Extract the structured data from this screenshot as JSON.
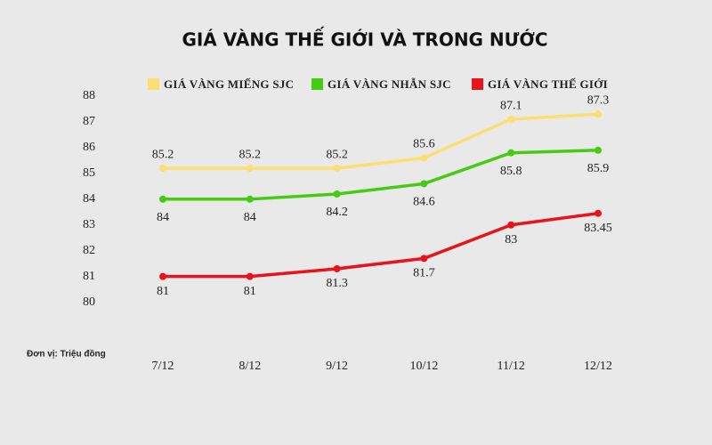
{
  "chart_data": {
    "type": "line",
    "title": "GIÁ VÀNG THẾ GIỚI VÀ TRONG NƯỚC",
    "unit_note": "Đơn vị: Triệu đồng",
    "categories": [
      "7/12",
      "8/12",
      "9/12",
      "10/12",
      "11/12",
      "12/12"
    ],
    "series": [
      {
        "name": "GIÁ VÀNG MIẾNG SJC",
        "color": "#fbdf72",
        "values": [
          85.2,
          85.2,
          85.2,
          85.6,
          87.1,
          87.3
        ]
      },
      {
        "name": "GIÁ VÀNG NHẪN SJC",
        "color": "#45cc12",
        "values": [
          84,
          84,
          84.2,
          84.6,
          85.8,
          85.9
        ]
      },
      {
        "name": "GIÁ VÀNG THẾ GIỚI",
        "color": "#e8131b",
        "values": [
          81,
          81,
          81.3,
          81.7,
          83,
          83.45
        ]
      }
    ],
    "ylim": [
      77.5,
      88
    ],
    "yticks": [
      80,
      81,
      82,
      83,
      84,
      85,
      86,
      87,
      88
    ],
    "grid": false
  }
}
